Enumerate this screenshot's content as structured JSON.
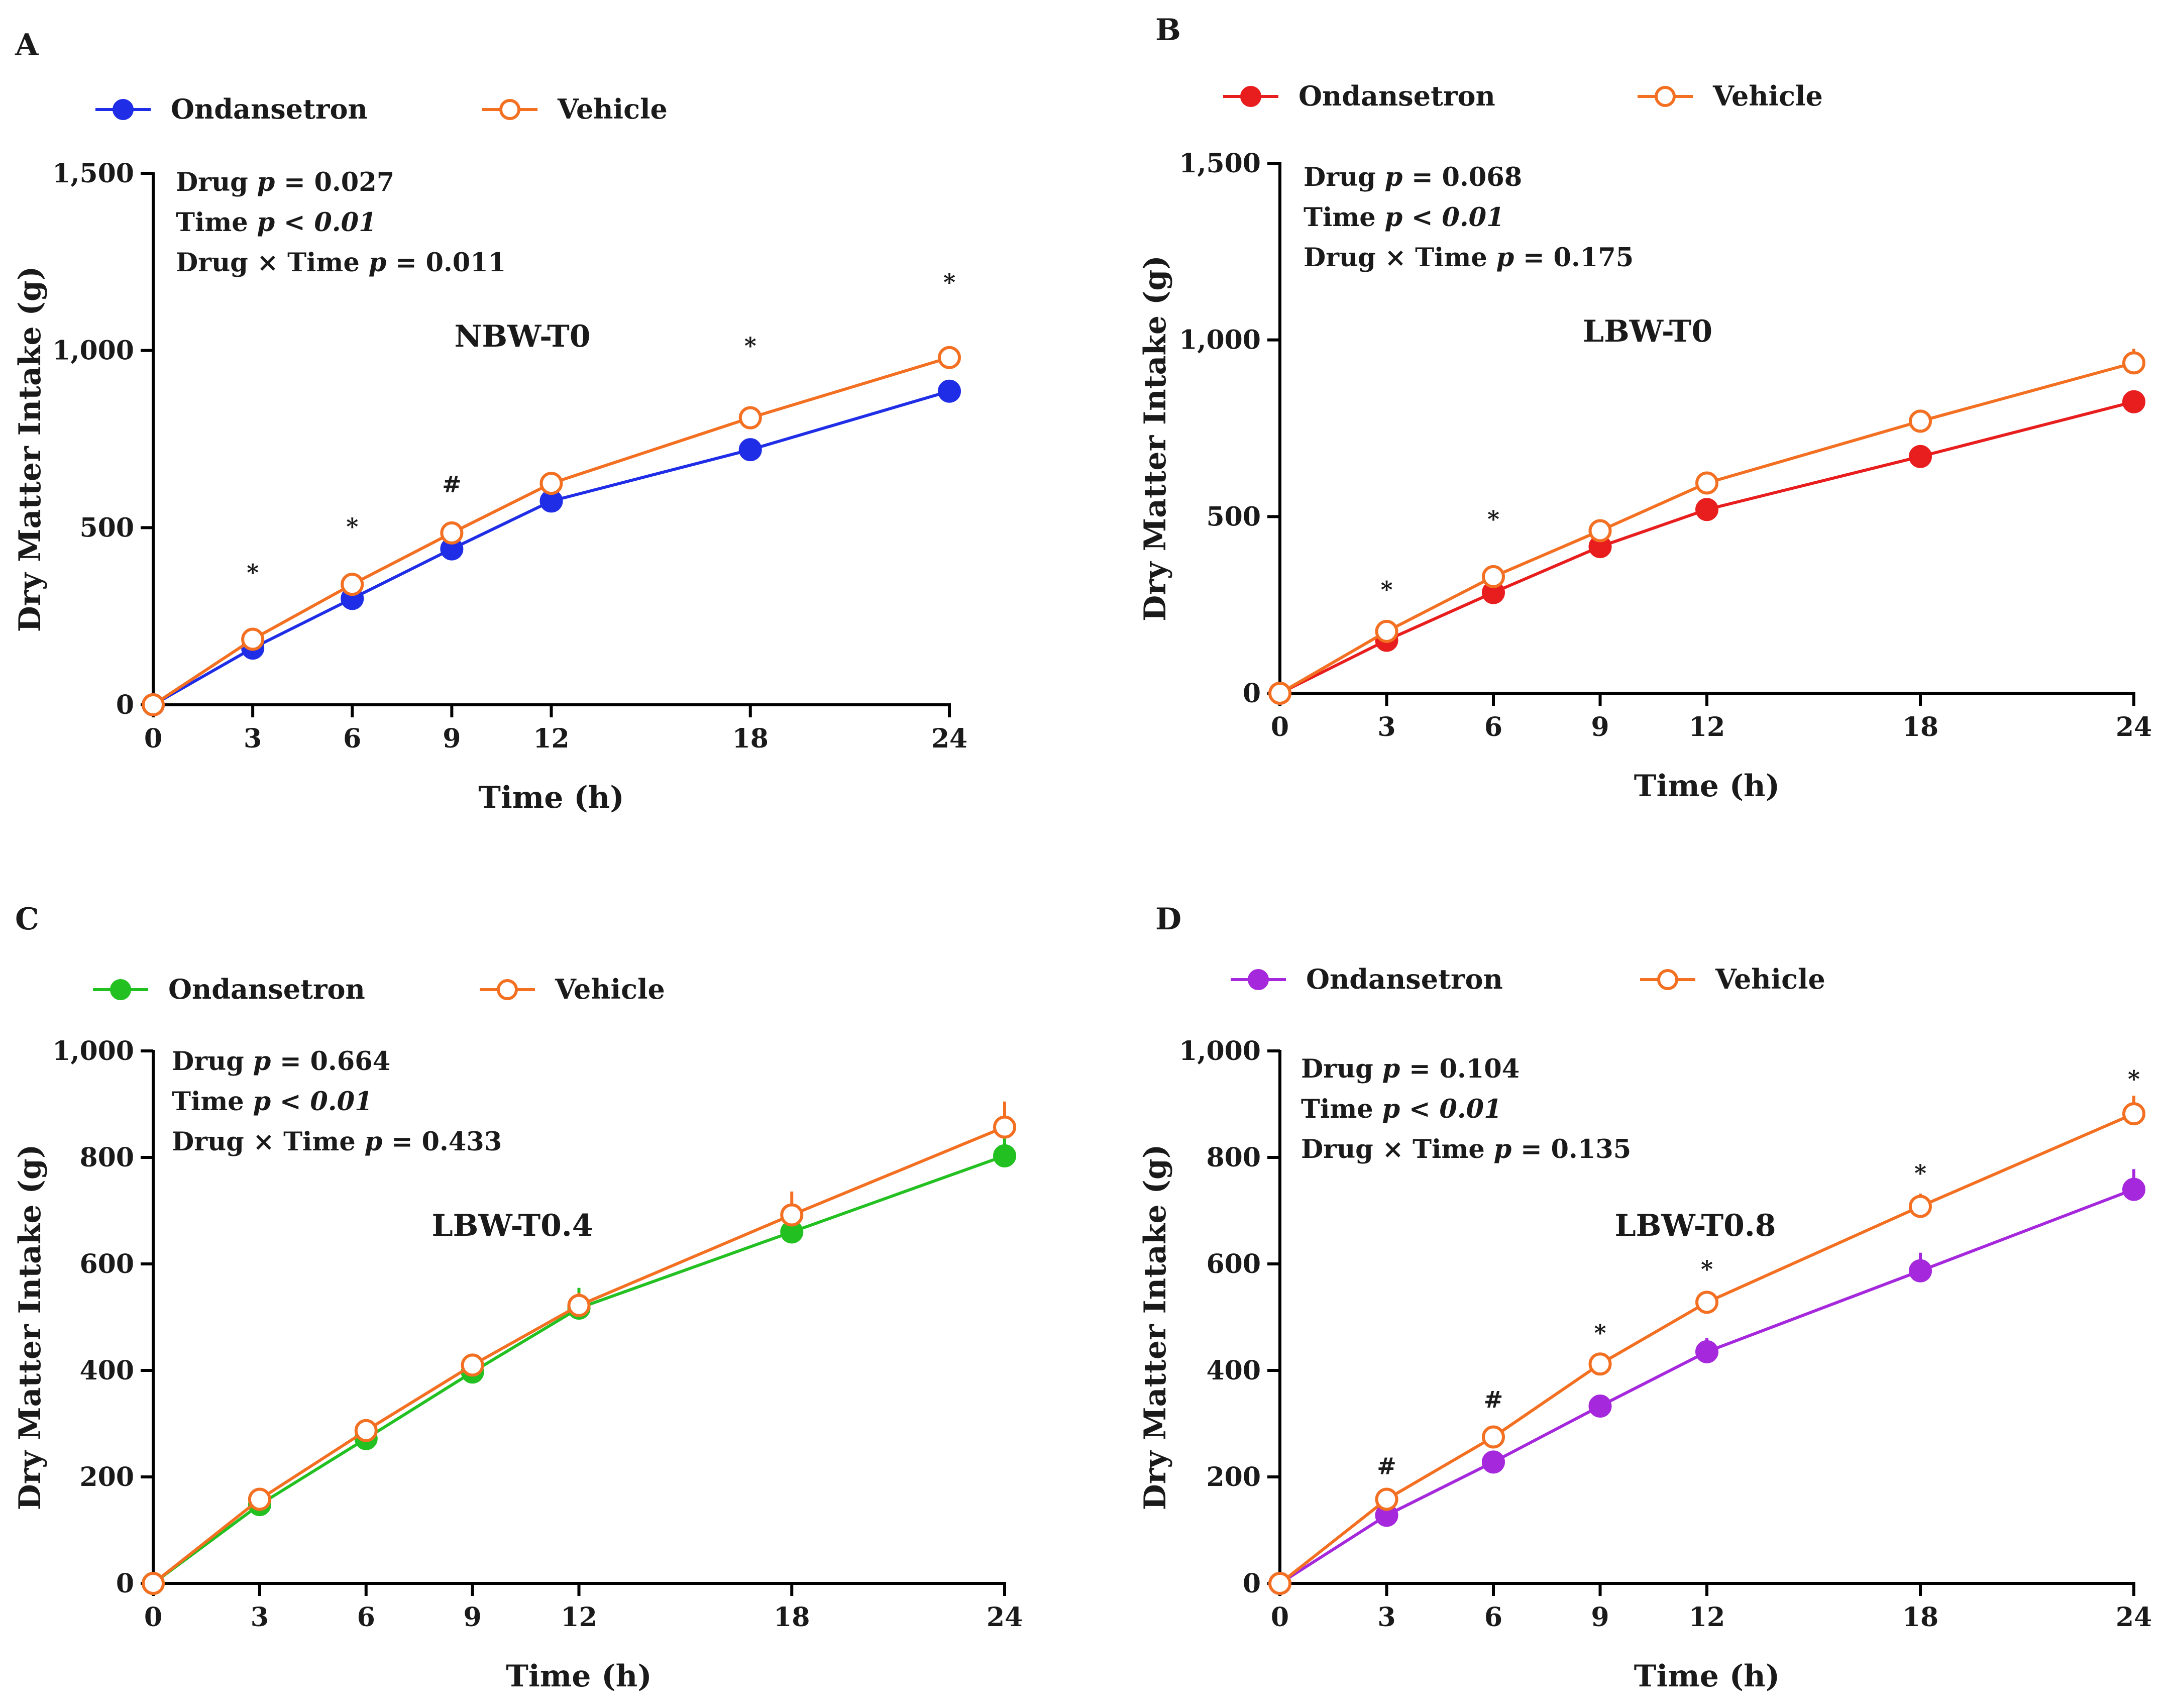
{
  "chart_data": [
    {
      "panel_label": "A",
      "type": "line",
      "group_label": "NBW-T0",
      "stats": [
        {
          "term": "Drug",
          "op": "=",
          "value": "0.027"
        },
        {
          "term": "Time",
          "op": "<",
          "value": "0.01"
        },
        {
          "term": "Drug × Time",
          "op": "=",
          "value": "0.011"
        }
      ],
      "xlabel": "Time (h)",
      "ylabel": "Dry Matter Intake (g)",
      "x": [
        0,
        3,
        6,
        9,
        12,
        18,
        24
      ],
      "x_ticks": [
        "0",
        "3",
        "6",
        "9",
        "12",
        "18",
        "24"
      ],
      "xlim": [
        0,
        24
      ],
      "ylim": [
        0,
        1500
      ],
      "y_ticks": [
        0,
        500,
        1000,
        1500
      ],
      "y_tick_labels": [
        "0",
        "500",
        "1,000",
        "1,500"
      ],
      "series": [
        {
          "name": "Ondansetron",
          "color": "#1f2ee6",
          "filled": true,
          "values": [
            0,
            160,
            300,
            440,
            575,
            720,
            885
          ],
          "errors": [
            0,
            8,
            10,
            12,
            12,
            12,
            18
          ]
        },
        {
          "name": "Vehicle",
          "color": "#f36f21",
          "filled": false,
          "values": [
            0,
            185,
            340,
            485,
            625,
            810,
            980
          ],
          "errors": [
            0,
            8,
            10,
            10,
            10,
            12,
            14
          ]
        }
      ],
      "annotations": [
        {
          "x": 3,
          "text": "*",
          "y": 350
        },
        {
          "x": 6,
          "text": "*",
          "y": 480
        },
        {
          "x": 9,
          "text": "#",
          "y": 600
        },
        {
          "x": 18,
          "text": "*",
          "y": 990
        },
        {
          "x": 24,
          "text": "*",
          "y": 1170
        }
      ]
    },
    {
      "panel_label": "B",
      "type": "line",
      "group_label": "LBW-T0",
      "stats": [
        {
          "term": "Drug",
          "op": "=",
          "value": "0.068"
        },
        {
          "term": "Time",
          "op": "<",
          "value": "0.01"
        },
        {
          "term": "Drug × Time",
          "op": "=",
          "value": "0.175"
        }
      ],
      "xlabel": "Time (h)",
      "ylabel": "Dry Matter Intake (g)",
      "x": [
        0,
        3,
        6,
        9,
        12,
        18,
        24
      ],
      "x_ticks": [
        "0",
        "3",
        "6",
        "9",
        "12",
        "18",
        "24"
      ],
      "xlim": [
        0,
        24
      ],
      "ylim": [
        0,
        1500
      ],
      "y_ticks": [
        0,
        500,
        1000,
        1500
      ],
      "y_tick_labels": [
        "0",
        "500",
        "1,000",
        "1,500"
      ],
      "series": [
        {
          "name": "Ondansetron",
          "color": "#e81d1d",
          "filled": true,
          "values": [
            0,
            150,
            285,
            415,
            520,
            670,
            825
          ],
          "errors": [
            0,
            8,
            10,
            12,
            14,
            20,
            26
          ]
        },
        {
          "name": "Vehicle",
          "color": "#f36f21",
          "filled": false,
          "values": [
            0,
            175,
            330,
            460,
            595,
            770,
            935
          ],
          "errors": [
            0,
            8,
            10,
            12,
            14,
            28,
            40
          ]
        }
      ],
      "annotations": [
        {
          "x": 3,
          "text": "*",
          "y": 270
        },
        {
          "x": 6,
          "text": "*",
          "y": 470
        }
      ]
    },
    {
      "panel_label": "C",
      "type": "line",
      "group_label": "LBW-T0.4",
      "stats": [
        {
          "term": "Drug",
          "op": "=",
          "value": "0.664"
        },
        {
          "term": "Time",
          "op": "<",
          "value": "0.01"
        },
        {
          "term": "Drug × Time",
          "op": "=",
          "value": "0.433"
        }
      ],
      "xlabel": "Time (h)",
      "ylabel": "Dry Matter Intake (g)",
      "x": [
        0,
        3,
        6,
        9,
        12,
        18,
        24
      ],
      "x_ticks": [
        "0",
        "3",
        "6",
        "9",
        "12",
        "18",
        "24"
      ],
      "xlim": [
        0,
        24
      ],
      "ylim": [
        0,
        1000
      ],
      "y_ticks": [
        0,
        200,
        400,
        600,
        800,
        1000
      ],
      "y_tick_labels": [
        "0",
        "200",
        "400",
        "600",
        "800",
        "1,000"
      ],
      "series": [
        {
          "name": "Ondansetron",
          "color": "#22c020",
          "filled": true,
          "values": [
            0,
            148,
            272,
            397,
            517,
            660,
            803
          ],
          "errors": [
            0,
            8,
            10,
            14,
            38,
            20,
            48
          ]
        },
        {
          "name": "Vehicle",
          "color": "#f36f21",
          "filled": false,
          "values": [
            0,
            158,
            287,
            410,
            522,
            692,
            857
          ],
          "errors": [
            0,
            8,
            10,
            18,
            24,
            44,
            48
          ]
        }
      ],
      "annotations": []
    },
    {
      "panel_label": "D",
      "type": "line",
      "group_label": "LBW-T0.8",
      "stats": [
        {
          "term": "Drug",
          "op": "=",
          "value": "0.104"
        },
        {
          "term": "Time",
          "op": "<",
          "value": "0.01"
        },
        {
          "term": "Drug × Time",
          "op": "=",
          "value": "0.135"
        }
      ],
      "xlabel": "Time (h)",
      "ylabel": "Dry Matter Intake (g)",
      "x": [
        0,
        3,
        6,
        9,
        12,
        18,
        24
      ],
      "x_ticks": [
        "0",
        "3",
        "6",
        "9",
        "12",
        "18",
        "24"
      ],
      "xlim": [
        0,
        24
      ],
      "ylim": [
        0,
        1000
      ],
      "y_ticks": [
        0,
        200,
        400,
        600,
        800,
        1000
      ],
      "y_tick_labels": [
        "0",
        "200",
        "400",
        "600",
        "800",
        "1,000"
      ],
      "series": [
        {
          "name": "Ondansetron",
          "color": "#a528dc",
          "filled": true,
          "values": [
            0,
            128,
            228,
            333,
            435,
            587,
            740
          ],
          "errors": [
            0,
            8,
            10,
            14,
            26,
            34,
            38
          ]
        },
        {
          "name": "Vehicle",
          "color": "#f36f21",
          "filled": false,
          "values": [
            0,
            158,
            275,
            412,
            528,
            708,
            882
          ],
          "errors": [
            0,
            8,
            10,
            14,
            20,
            24,
            34
          ]
        }
      ],
      "annotations": [
        {
          "x": 3,
          "text": "#",
          "y": 205
        },
        {
          "x": 6,
          "text": "#",
          "y": 330
        },
        {
          "x": 9,
          "text": "*",
          "y": 455
        },
        {
          "x": 12,
          "text": "*",
          "y": 575
        },
        {
          "x": 18,
          "text": "*",
          "y": 755
        },
        {
          "x": 24,
          "text": "*",
          "y": 932
        }
      ]
    }
  ]
}
